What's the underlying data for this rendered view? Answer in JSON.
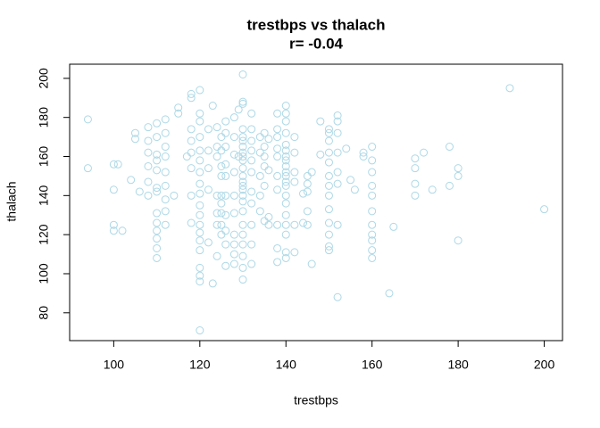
{
  "chart_data": {
    "type": "scatter",
    "title": "trestbps vs thalach",
    "subtitle": "r= -0.04",
    "x_label": "trestbps",
    "y_label": "thalach",
    "color": "#add8e6",
    "xlim": [
      89.76,
      204.24
    ],
    "ylim": [
      65.76,
      207.24
    ],
    "xticks": [
      100,
      120,
      140,
      160,
      180,
      200
    ],
    "yticks": [
      80,
      100,
      120,
      140,
      160,
      180,
      200
    ],
    "x": [
      94,
      94,
      100,
      100,
      100,
      100,
      101,
      102,
      104,
      105,
      105,
      106,
      108,
      108,
      108,
      108,
      108,
      108,
      110,
      110,
      110,
      110,
      110,
      110,
      110,
      110,
      110,
      110,
      110,
      110,
      110,
      112,
      112,
      112,
      112,
      112,
      112,
      112,
      112,
      112,
      114,
      115,
      115,
      117,
      118,
      118,
      118,
      118,
      118,
      118,
      118,
      118,
      120,
      120,
      120,
      120,
      120,
      120,
      120,
      120,
      120,
      120,
      120,
      120,
      120,
      120,
      120,
      120,
      120,
      120,
      120,
      122,
      122,
      122,
      122,
      122,
      123,
      123,
      124,
      124,
      124,
      124,
      124,
      124,
      124,
      125,
      125,
      125,
      125,
      125,
      125,
      125,
      125,
      125,
      126,
      126,
      126,
      126,
      126,
      126,
      126,
      126,
      126,
      126,
      128,
      128,
      128,
      128,
      128,
      128,
      128,
      128,
      128,
      128,
      129,
      129,
      130,
      130,
      130,
      130,
      130,
      130,
      130,
      130,
      130,
      130,
      130,
      130,
      130,
      130,
      130,
      130,
      130,
      130,
      130,
      130,
      130,
      130,
      130,
      130,
      132,
      132,
      132,
      132,
      132,
      132,
      132,
      132,
      132,
      132,
      132,
      134,
      134,
      134,
      134,
      134,
      135,
      135,
      135,
      135,
      135,
      135,
      136,
      136,
      136,
      136,
      138,
      138,
      138,
      138,
      138,
      138,
      138,
      138,
      138,
      138,
      140,
      140,
      140,
      140,
      140,
      140,
      140,
      140,
      140,
      140,
      140,
      140,
      140,
      140,
      140,
      140,
      140,
      140,
      140,
      140,
      142,
      142,
      142,
      142,
      142,
      142,
      144,
      144,
      145,
      145,
      145,
      145,
      145,
      146,
      146,
      148,
      148,
      150,
      150,
      150,
      150,
      150,
      150,
      150,
      150,
      150,
      150,
      150,
      150,
      150,
      152,
      152,
      152,
      152,
      152,
      152,
      152,
      152,
      154,
      155,
      156,
      158,
      158,
      160,
      160,
      160,
      160,
      160,
      160,
      160,
      160,
      160,
      160,
      160,
      164,
      165,
      170,
      170,
      170,
      170,
      172,
      174,
      178,
      178,
      180,
      180,
      180,
      192,
      200
    ],
    "values": [
      179,
      154,
      156,
      143,
      125,
      122,
      156,
      122,
      148,
      172,
      169,
      142,
      175,
      168,
      162,
      155,
      147,
      140,
      177,
      170,
      161,
      158,
      153,
      144,
      142,
      131,
      126,
      122,
      118,
      113,
      108,
      179,
      172,
      165,
      160,
      152,
      145,
      138,
      132,
      125,
      140,
      185,
      182,
      160,
      192,
      190,
      174,
      168,
      162,
      154,
      140,
      126,
      194,
      182,
      178,
      170,
      163,
      158,
      152,
      146,
      141,
      135,
      130,
      125,
      121,
      117,
      112,
      103,
      99,
      96,
      71,
      174,
      163,
      154,
      143,
      116,
      95,
      186,
      175,
      165,
      160,
      140,
      131,
      125,
      109,
      170,
      163,
      155,
      150,
      140,
      136,
      131,
      125,
      120,
      178,
      172,
      165,
      156,
      150,
      140,
      130,
      122,
      115,
      104,
      180,
      170,
      161,
      152,
      140,
      131,
      120,
      110,
      105,
      115,
      184,
      160,
      202,
      188,
      187,
      174,
      170,
      168,
      165,
      162,
      160,
      158,
      154,
      150,
      147,
      145,
      143,
      140,
      137,
      132,
      125,
      120,
      115,
      109,
      103,
      97,
      182,
      174,
      168,
      163,
      158,
      152,
      142,
      136,
      125,
      115,
      105,
      170,
      162,
      150,
      140,
      132,
      172,
      165,
      160,
      155,
      145,
      127,
      169,
      153,
      129,
      125,
      182,
      174,
      170,
      164,
      160,
      150,
      143,
      125,
      113,
      106,
      186,
      182,
      178,
      172,
      166,
      163,
      160,
      158,
      155,
      152,
      150,
      147,
      145,
      140,
      136,
      130,
      125,
      120,
      111,
      108,
      170,
      162,
      152,
      147,
      125,
      111,
      141,
      126,
      150,
      146,
      142,
      132,
      125,
      152,
      105,
      178,
      161,
      174,
      172,
      168,
      162,
      157,
      150,
      145,
      140,
      133,
      126,
      120,
      114,
      112,
      181,
      178,
      172,
      162,
      152,
      146,
      125,
      88,
      164,
      148,
      143,
      162,
      160,
      165,
      158,
      152,
      145,
      140,
      132,
      125,
      120,
      117,
      112,
      108,
      90,
      124,
      159,
      154,
      146,
      140,
      162,
      143,
      165,
      145,
      154,
      150,
      117,
      195,
      133
    ]
  }
}
